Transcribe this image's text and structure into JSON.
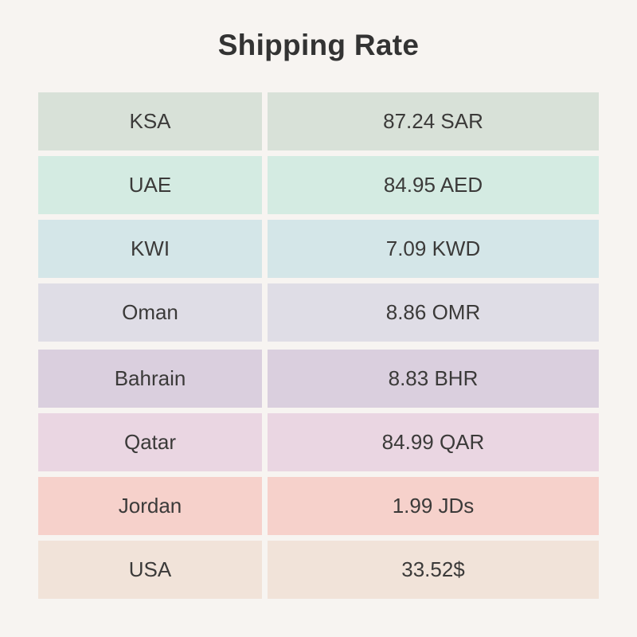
{
  "title": "Shipping Rate",
  "rows": [
    {
      "country": "KSA",
      "rate": "87.24 SAR",
      "color": "#d8e1d8"
    },
    {
      "country": "UAE",
      "rate": "84.95 AED",
      "color": "#d4ebe2"
    },
    {
      "country": "KWI",
      "rate": "7.09 KWD",
      "color": "#d4e6e8"
    },
    {
      "country": "Oman",
      "rate": "8.86 OMR",
      "color": "#dfdde6"
    },
    {
      "country": "Bahrain",
      "rate": "8.83 BHR",
      "color": "#dacfde"
    },
    {
      "country": "Qatar",
      "rate": "84.99 QAR",
      "color": "#ead6e2"
    },
    {
      "country": "Jordan",
      "rate": "1.99 JDs",
      "color": "#f6d1cb"
    },
    {
      "country": "USA",
      "rate": "33.52$",
      "color": "#f1e3d9"
    }
  ]
}
